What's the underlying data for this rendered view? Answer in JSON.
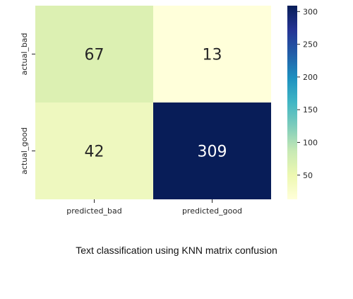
{
  "chart_data": {
    "type": "heatmap",
    "title": "",
    "x_categories": [
      "predicted_bad",
      "predicted_good"
    ],
    "y_categories": [
      "actual_bad",
      "actual_good"
    ],
    "values": [
      [
        67,
        13
      ],
      [
        42,
        309
      ]
    ],
    "colorscale": "YlGnBu",
    "colorbar": {
      "ticks": [
        50,
        100,
        150,
        200,
        250,
        300
      ],
      "range": [
        13,
        309
      ]
    },
    "colors": {
      "67": "#dcf0b2",
      "13": "#ffffda",
      "42": "#eef8bf",
      "309": "#081d58"
    }
  },
  "caption": "Text classification using KNN matrix confusion"
}
